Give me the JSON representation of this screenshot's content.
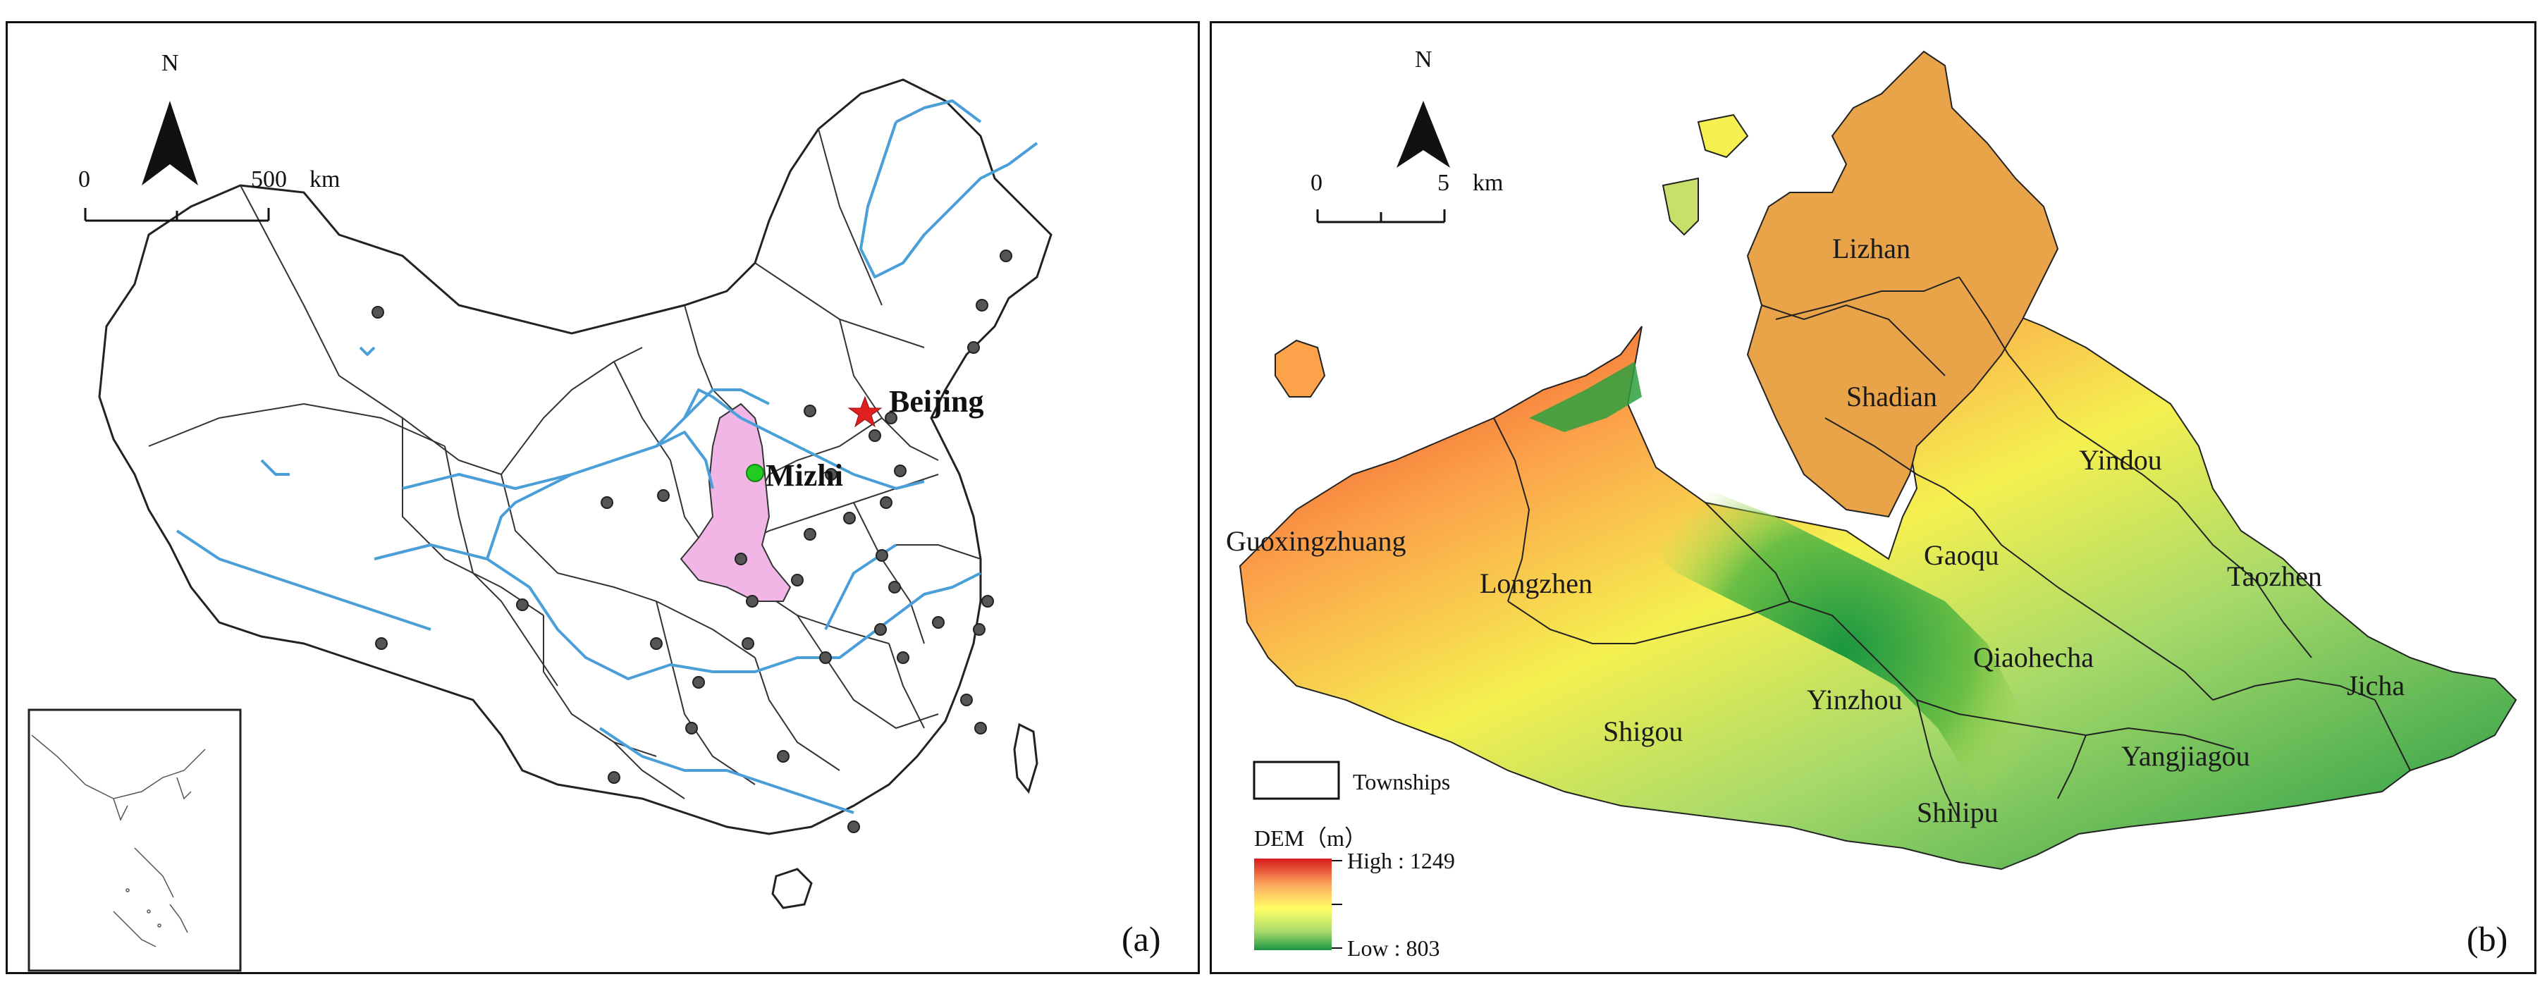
{
  "panel_a": {
    "tag": "(a)",
    "north_label": "N",
    "scale": {
      "start": "0",
      "end": "500",
      "unit": "km"
    },
    "cities": {
      "beijing": "Beijing",
      "mizhi": "Mizhi"
    },
    "colors": {
      "river": "#4a9fd8",
      "highlight_province": "#f1b6e6",
      "capital_star": "#e02020",
      "mizhi_dot": "#22cc22",
      "station": "#555555"
    }
  },
  "panel_b": {
    "tag": "(b)",
    "north_label": "N",
    "scale": {
      "start": "0",
      "end": "5",
      "unit": "km"
    },
    "townships": [
      "Lizhan",
      "Shadian",
      "Yindou",
      "Guoxingzhuang",
      "Longzhen",
      "Gaoqu",
      "Taozhen",
      "Qiaohecha",
      "Jicha",
      "Yinzhou",
      "Shigou",
      "Yangjiagou",
      "Shilipu"
    ],
    "legend": {
      "townships_label": "Townships",
      "dem_title": "DEM（m）",
      "high_label": "High : 1249",
      "low_label": "Low : 803",
      "ramp_colors": [
        "#d7191c",
        "#fdae61",
        "#ffff66",
        "#a6d96a",
        "#1a9641"
      ]
    }
  }
}
